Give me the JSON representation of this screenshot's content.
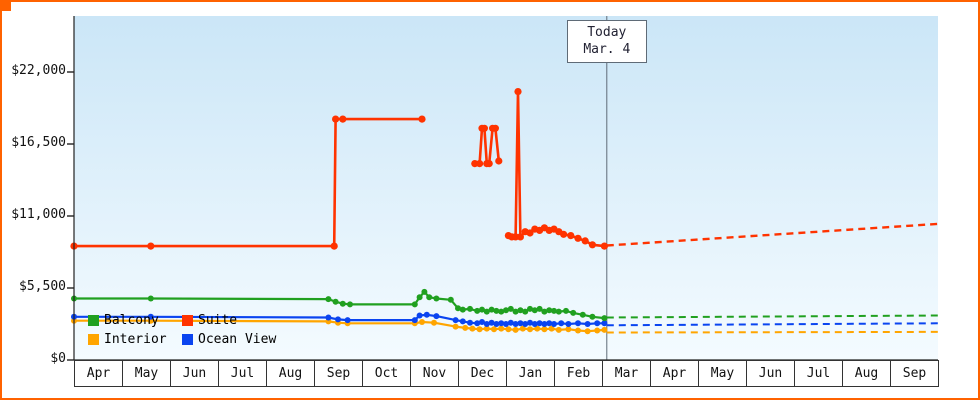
{
  "frame": {
    "border_color": "#ff6200"
  },
  "today_marker": {
    "line1": "Today",
    "line2": "Mar. 4"
  },
  "legend": {
    "items": [
      {
        "label": "Balcony",
        "color": "#20a020"
      },
      {
        "label": "Suite",
        "color": "#ff3300"
      },
      {
        "label": "Interior",
        "color": "#ffa500"
      },
      {
        "label": "Ocean View",
        "color": "#0a44f0"
      }
    ]
  },
  "chart_data": {
    "type": "line",
    "title": "",
    "xlabel": "",
    "ylabel": "",
    "currency": "USD",
    "x_unit": "months from first April (0) to second September (17); solid = price history, dashed = forecast after today",
    "x_tick_labels": [
      "Apr",
      "May",
      "Jun",
      "Jul",
      "Aug",
      "Sep",
      "Oct",
      "Nov",
      "Dec",
      "Jan",
      "Feb",
      "Mar",
      "Apr",
      "May",
      "Jun",
      "Jul",
      "Aug",
      "Sep"
    ],
    "y_ticks": [
      {
        "value": 0,
        "label": "$0"
      },
      {
        "value": 5500,
        "label": "$5,500"
      },
      {
        "value": 11000,
        "label": "$11,000"
      },
      {
        "value": 16500,
        "label": "$16,500"
      },
      {
        "value": 22000,
        "label": "$22,000"
      }
    ],
    "ylim": [
      0,
      26300
    ],
    "xlim": [
      0,
      18
    ],
    "today_x": 11.1,
    "background_gradient": [
      "#cbe6f7",
      "#f4fbff"
    ],
    "series": [
      {
        "name": "Interior",
        "color": "#ffa500",
        "line_width": 2.2,
        "dot_radius": 3.0,
        "history_segments": [
          [
            [
              0,
              3000
            ],
            [
              1.6,
              3000
            ],
            [
              5.3,
              2950
            ],
            [
              5.5,
              2850
            ],
            [
              5.7,
              2800
            ],
            [
              7.1,
              2800
            ],
            [
              7.25,
              2900
            ],
            [
              7.5,
              2850
            ],
            [
              7.95,
              2550
            ],
            [
              8.15,
              2450
            ],
            [
              8.3,
              2400
            ],
            [
              8.45,
              2350
            ],
            [
              8.6,
              2400
            ],
            [
              8.75,
              2350
            ],
            [
              8.9,
              2400
            ],
            [
              9.05,
              2350
            ],
            [
              9.2,
              2300
            ],
            [
              9.35,
              2400
            ],
            [
              9.5,
              2350
            ],
            [
              9.65,
              2400
            ],
            [
              9.8,
              2350
            ],
            [
              9.95,
              2400
            ],
            [
              10.1,
              2300
            ],
            [
              10.3,
              2350
            ],
            [
              10.5,
              2250
            ],
            [
              10.7,
              2200
            ],
            [
              10.9,
              2250
            ],
            [
              11.05,
              2300
            ]
          ]
        ],
        "forecast": [
          [
            11.1,
            2100
          ],
          [
            18,
            2150
          ]
        ]
      },
      {
        "name": "Ocean View",
        "color": "#0a44f0",
        "line_width": 2.2,
        "dot_radius": 3.0,
        "history_segments": [
          [
            [
              0,
              3300
            ],
            [
              1.6,
              3300
            ],
            [
              5.3,
              3250
            ],
            [
              5.5,
              3100
            ],
            [
              5.7,
              3050
            ],
            [
              7.1,
              3050
            ],
            [
              7.2,
              3400
            ],
            [
              7.35,
              3450
            ],
            [
              7.55,
              3350
            ],
            [
              7.95,
              3050
            ],
            [
              8.1,
              2950
            ],
            [
              8.25,
              2850
            ],
            [
              8.4,
              2800
            ],
            [
              8.5,
              2900
            ],
            [
              8.6,
              2750
            ],
            [
              8.7,
              2850
            ],
            [
              8.8,
              2750
            ],
            [
              8.9,
              2800
            ],
            [
              9.0,
              2750
            ],
            [
              9.1,
              2850
            ],
            [
              9.2,
              2750
            ],
            [
              9.3,
              2800
            ],
            [
              9.4,
              2750
            ],
            [
              9.5,
              2850
            ],
            [
              9.6,
              2750
            ],
            [
              9.7,
              2800
            ],
            [
              9.8,
              2750
            ],
            [
              9.9,
              2800
            ],
            [
              10.0,
              2750
            ],
            [
              10.15,
              2800
            ],
            [
              10.3,
              2750
            ],
            [
              10.5,
              2800
            ],
            [
              10.7,
              2750
            ],
            [
              10.9,
              2800
            ],
            [
              11.05,
              2800
            ]
          ]
        ],
        "forecast": [
          [
            11.1,
            2650
          ],
          [
            18,
            2800
          ]
        ]
      },
      {
        "name": "Balcony",
        "color": "#20a020",
        "line_width": 2.2,
        "dot_radius": 3.0,
        "history_segments": [
          [
            [
              0,
              4700
            ],
            [
              1.6,
              4700
            ],
            [
              5.3,
              4650
            ],
            [
              5.45,
              4450
            ],
            [
              5.6,
              4300
            ],
            [
              5.75,
              4250
            ],
            [
              7.1,
              4250
            ],
            [
              7.2,
              4800
            ],
            [
              7.3,
              5200
            ],
            [
              7.4,
              4800
            ],
            [
              7.55,
              4700
            ],
            [
              7.85,
              4600
            ],
            [
              8.0,
              3950
            ],
            [
              8.1,
              3850
            ],
            [
              8.25,
              3900
            ],
            [
              8.4,
              3750
            ],
            [
              8.5,
              3850
            ],
            [
              8.6,
              3700
            ],
            [
              8.7,
              3850
            ],
            [
              8.8,
              3750
            ],
            [
              8.9,
              3700
            ],
            [
              9.0,
              3800
            ],
            [
              9.1,
              3900
            ],
            [
              9.2,
              3700
            ],
            [
              9.3,
              3800
            ],
            [
              9.4,
              3700
            ],
            [
              9.5,
              3900
            ],
            [
              9.6,
              3800
            ],
            [
              9.7,
              3900
            ],
            [
              9.8,
              3700
            ],
            [
              9.9,
              3800
            ],
            [
              10.0,
              3750
            ],
            [
              10.1,
              3700
            ],
            [
              10.25,
              3750
            ],
            [
              10.4,
              3600
            ],
            [
              10.6,
              3450
            ],
            [
              10.8,
              3300
            ],
            [
              11.05,
              3200
            ]
          ]
        ],
        "forecast": [
          [
            11.1,
            3250
          ],
          [
            18,
            3400
          ]
        ]
      },
      {
        "name": "Suite",
        "color": "#ff3300",
        "line_width": 2.6,
        "dot_radius": 3.6,
        "history_segments": [
          [
            [
              0,
              8700
            ],
            [
              1.6,
              8700
            ],
            [
              5.42,
              8700
            ],
            [
              5.45,
              18400
            ],
            [
              5.6,
              18400
            ],
            [
              7.25,
              18400
            ]
          ],
          [
            [
              8.35,
              15000
            ],
            [
              8.45,
              15000
            ],
            [
              8.5,
              17700
            ],
            [
              8.55,
              17700
            ],
            [
              8.6,
              15000
            ],
            [
              8.65,
              15000
            ],
            [
              8.72,
              17700
            ],
            [
              8.78,
              17700
            ],
            [
              8.85,
              15200
            ]
          ],
          [
            [
              9.05,
              9500
            ],
            [
              9.12,
              9400
            ],
            [
              9.2,
              9400
            ],
            [
              9.25,
              20500
            ],
            [
              9.3,
              9400
            ],
            [
              9.4,
              9800
            ],
            [
              9.5,
              9700
            ],
            [
              9.6,
              10000
            ],
            [
              9.7,
              9900
            ],
            [
              9.8,
              10100
            ],
            [
              9.9,
              9900
            ],
            [
              10.0,
              10000
            ],
            [
              10.1,
              9800
            ],
            [
              10.2,
              9600
            ],
            [
              10.35,
              9500
            ],
            [
              10.5,
              9300
            ],
            [
              10.65,
              9100
            ],
            [
              10.8,
              8800
            ],
            [
              11.05,
              8700
            ]
          ]
        ],
        "forecast": [
          [
            11.1,
            8750
          ],
          [
            18,
            10400
          ]
        ]
      }
    ]
  }
}
